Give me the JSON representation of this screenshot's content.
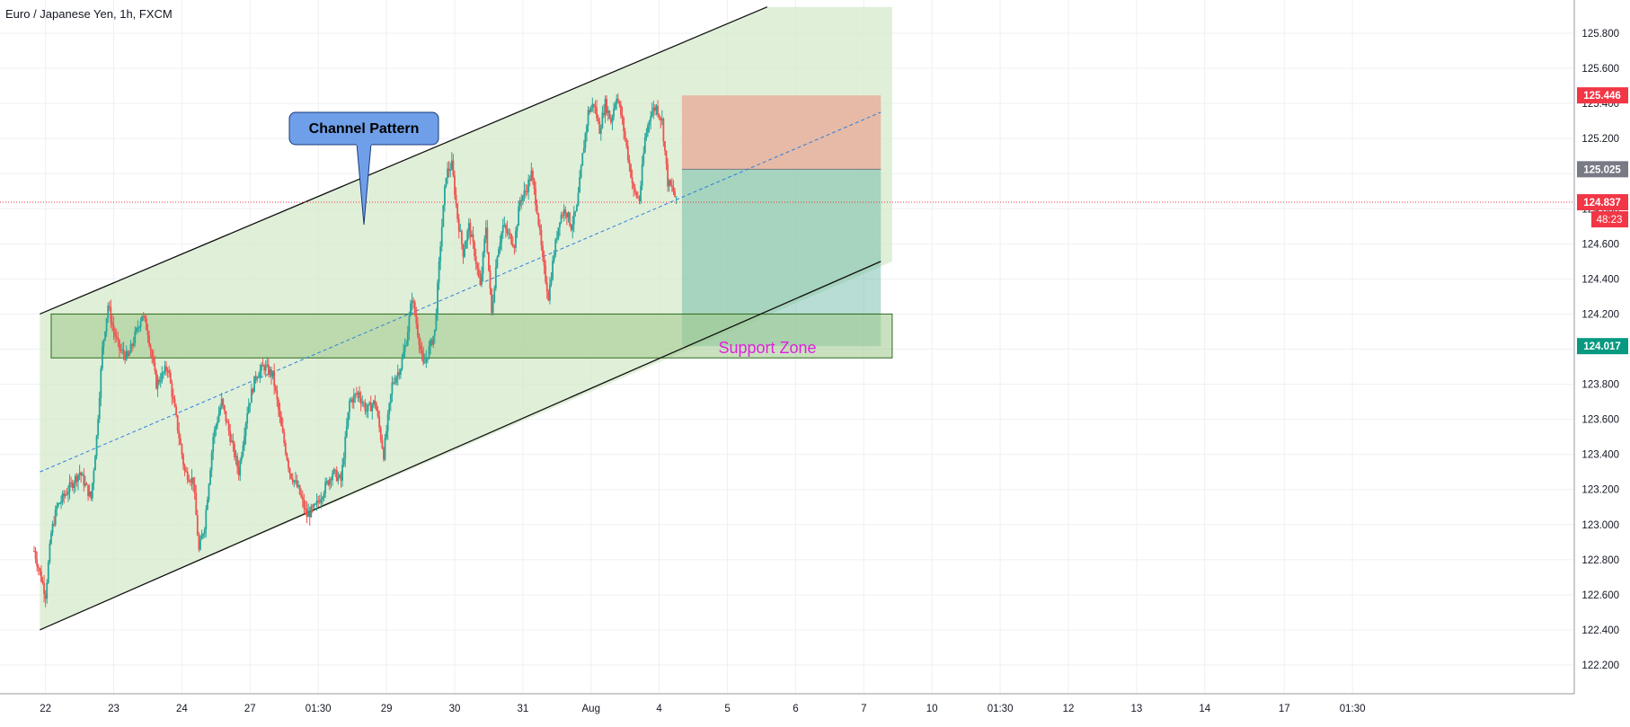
{
  "header": {
    "title": "Euro / Japanese Yen, 1h, FXCM"
  },
  "chart_data": {
    "type": "candlestick",
    "symbol": "EURJPY",
    "timeframe": "1h",
    "ylim": [
      122.2,
      125.9
    ],
    "y_ticks": [
      "122.200",
      "122.400",
      "122.600",
      "122.800",
      "123.000",
      "123.200",
      "123.400",
      "123.600",
      "123.800",
      "124.000",
      "124.200",
      "124.400",
      "124.600",
      "124.800",
      "125.000",
      "125.200",
      "125.400",
      "125.600",
      "125.800"
    ],
    "x_ticks": [
      {
        "label": "22",
        "t": 4
      },
      {
        "label": "23",
        "t": 28
      },
      {
        "label": "24",
        "t": 52
      },
      {
        "label": "27",
        "t": 76
      },
      {
        "label": "01:30",
        "t": 100
      },
      {
        "label": "29",
        "t": 124
      },
      {
        "label": "30",
        "t": 148
      },
      {
        "label": "31",
        "t": 172
      },
      {
        "label": "Aug",
        "t": 196
      },
      {
        "label": "4",
        "t": 220
      },
      {
        "label": "5",
        "t": 244
      },
      {
        "label": "6",
        "t": 268
      },
      {
        "label": "7",
        "t": 292
      },
      {
        "label": "10",
        "t": 316
      },
      {
        "label": "01:30",
        "t": 340
      },
      {
        "label": "12",
        "t": 364
      },
      {
        "label": "13",
        "t": 388
      },
      {
        "label": "14",
        "t": 412
      },
      {
        "label": "17",
        "t": 440
      },
      {
        "label": "01:30",
        "t": 464
      }
    ],
    "price_path": [
      [
        0,
        122.85
      ],
      [
        4,
        122.6
      ],
      [
        6,
        122.95
      ],
      [
        8,
        123.1
      ],
      [
        12,
        123.2
      ],
      [
        16,
        123.3
      ],
      [
        20,
        123.15
      ],
      [
        22,
        123.5
      ],
      [
        24,
        124.0
      ],
      [
        26,
        124.25
      ],
      [
        28,
        124.1
      ],
      [
        30,
        124.0
      ],
      [
        33,
        123.95
      ],
      [
        36,
        124.1
      ],
      [
        38,
        124.2
      ],
      [
        40,
        124.1
      ],
      [
        43,
        123.8
      ],
      [
        47,
        123.9
      ],
      [
        50,
        123.6
      ],
      [
        53,
        123.3
      ],
      [
        56,
        123.25
      ],
      [
        58,
        122.85
      ],
      [
        60,
        123.0
      ],
      [
        63,
        123.5
      ],
      [
        66,
        123.7
      ],
      [
        69,
        123.5
      ],
      [
        72,
        123.3
      ],
      [
        75,
        123.65
      ],
      [
        78,
        123.85
      ],
      [
        81,
        123.9
      ],
      [
        84,
        123.85
      ],
      [
        87,
        123.55
      ],
      [
        90,
        123.3
      ],
      [
        93,
        123.2
      ],
      [
        96,
        123.05
      ],
      [
        99,
        123.1
      ],
      [
        102,
        123.2
      ],
      [
        105,
        123.3
      ],
      [
        108,
        123.25
      ],
      [
        111,
        123.7
      ],
      [
        114,
        123.75
      ],
      [
        117,
        123.65
      ],
      [
        120,
        123.7
      ],
      [
        123,
        123.4
      ],
      [
        126,
        123.8
      ],
      [
        129,
        123.9
      ],
      [
        131,
        124.05
      ],
      [
        133,
        124.3
      ],
      [
        135,
        124.1
      ],
      [
        137,
        123.9
      ],
      [
        139,
        124.0
      ],
      [
        141,
        124.1
      ],
      [
        143,
        124.6
      ],
      [
        145,
        125.0
      ],
      [
        147,
        125.05
      ],
      [
        149,
        124.75
      ],
      [
        151,
        124.55
      ],
      [
        153,
        124.7
      ],
      [
        155,
        124.55
      ],
      [
        157,
        124.35
      ],
      [
        159,
        124.7
      ],
      [
        161,
        124.2
      ],
      [
        163,
        124.55
      ],
      [
        165,
        124.7
      ],
      [
        167,
        124.65
      ],
      [
        169,
        124.6
      ],
      [
        171,
        124.85
      ],
      [
        173,
        124.9
      ],
      [
        175,
        125.0
      ],
      [
        177,
        124.8
      ],
      [
        179,
        124.5
      ],
      [
        181,
        124.3
      ],
      [
        183,
        124.55
      ],
      [
        185,
        124.75
      ],
      [
        187,
        124.8
      ],
      [
        189,
        124.7
      ],
      [
        191,
        124.8
      ],
      [
        193,
        125.1
      ],
      [
        195,
        125.35
      ],
      [
        197,
        125.4
      ],
      [
        199,
        125.25
      ],
      [
        201,
        125.4
      ],
      [
        203,
        125.3
      ],
      [
        205,
        125.45
      ],
      [
        207,
        125.3
      ],
      [
        209,
        125.1
      ],
      [
        211,
        124.9
      ],
      [
        213,
        124.85
      ],
      [
        215,
        125.2
      ],
      [
        217,
        125.35
      ],
      [
        219,
        125.38
      ],
      [
        221,
        125.3
      ],
      [
        223,
        124.95
      ],
      [
        225,
        124.9
      ],
      [
        226,
        124.84
      ]
    ],
    "current_price": 124.837,
    "countdown": "48:23",
    "channel": {
      "upper": [
        [
          2,
          124.2
        ],
        [
          258,
          125.95
        ]
      ],
      "lower": [
        [
          2,
          122.4
        ],
        [
          298,
          124.5
        ]
      ],
      "midline": [
        [
          2,
          123.3
        ],
        [
          298,
          125.35
        ]
      ]
    },
    "annotations": {
      "callout_label": "Channel Pattern",
      "support_zone_label": "Support Zone"
    },
    "support_zone": {
      "y_top": 124.2,
      "y_bottom": 123.95,
      "t_start": 6,
      "t_end": 302
    },
    "position": {
      "type": "short",
      "entry": 125.025,
      "stop": 125.446,
      "target": 124.017,
      "t_start": 228,
      "t_end": 298
    },
    "price_labels": [
      {
        "value": "125.446",
        "price": 125.446,
        "color": "#f23645"
      },
      {
        "value": "125.025",
        "price": 125.025,
        "color": "#787b86"
      },
      {
        "value": "124.837",
        "price": 124.837,
        "color": "#f23645"
      },
      {
        "value": "124.017",
        "price": 124.017,
        "color": "#089981"
      }
    ],
    "colors": {
      "up": "#26a69a",
      "down": "#ef5350",
      "channel_fill": "#d6eacb",
      "zone_fill": "#9fc98a",
      "profit": "#5fb3a0",
      "loss": "#e8a896",
      "callout_fill": "#6f9fe8",
      "support_text": "#e01fe0",
      "grid": "#eef0f3"
    }
  }
}
